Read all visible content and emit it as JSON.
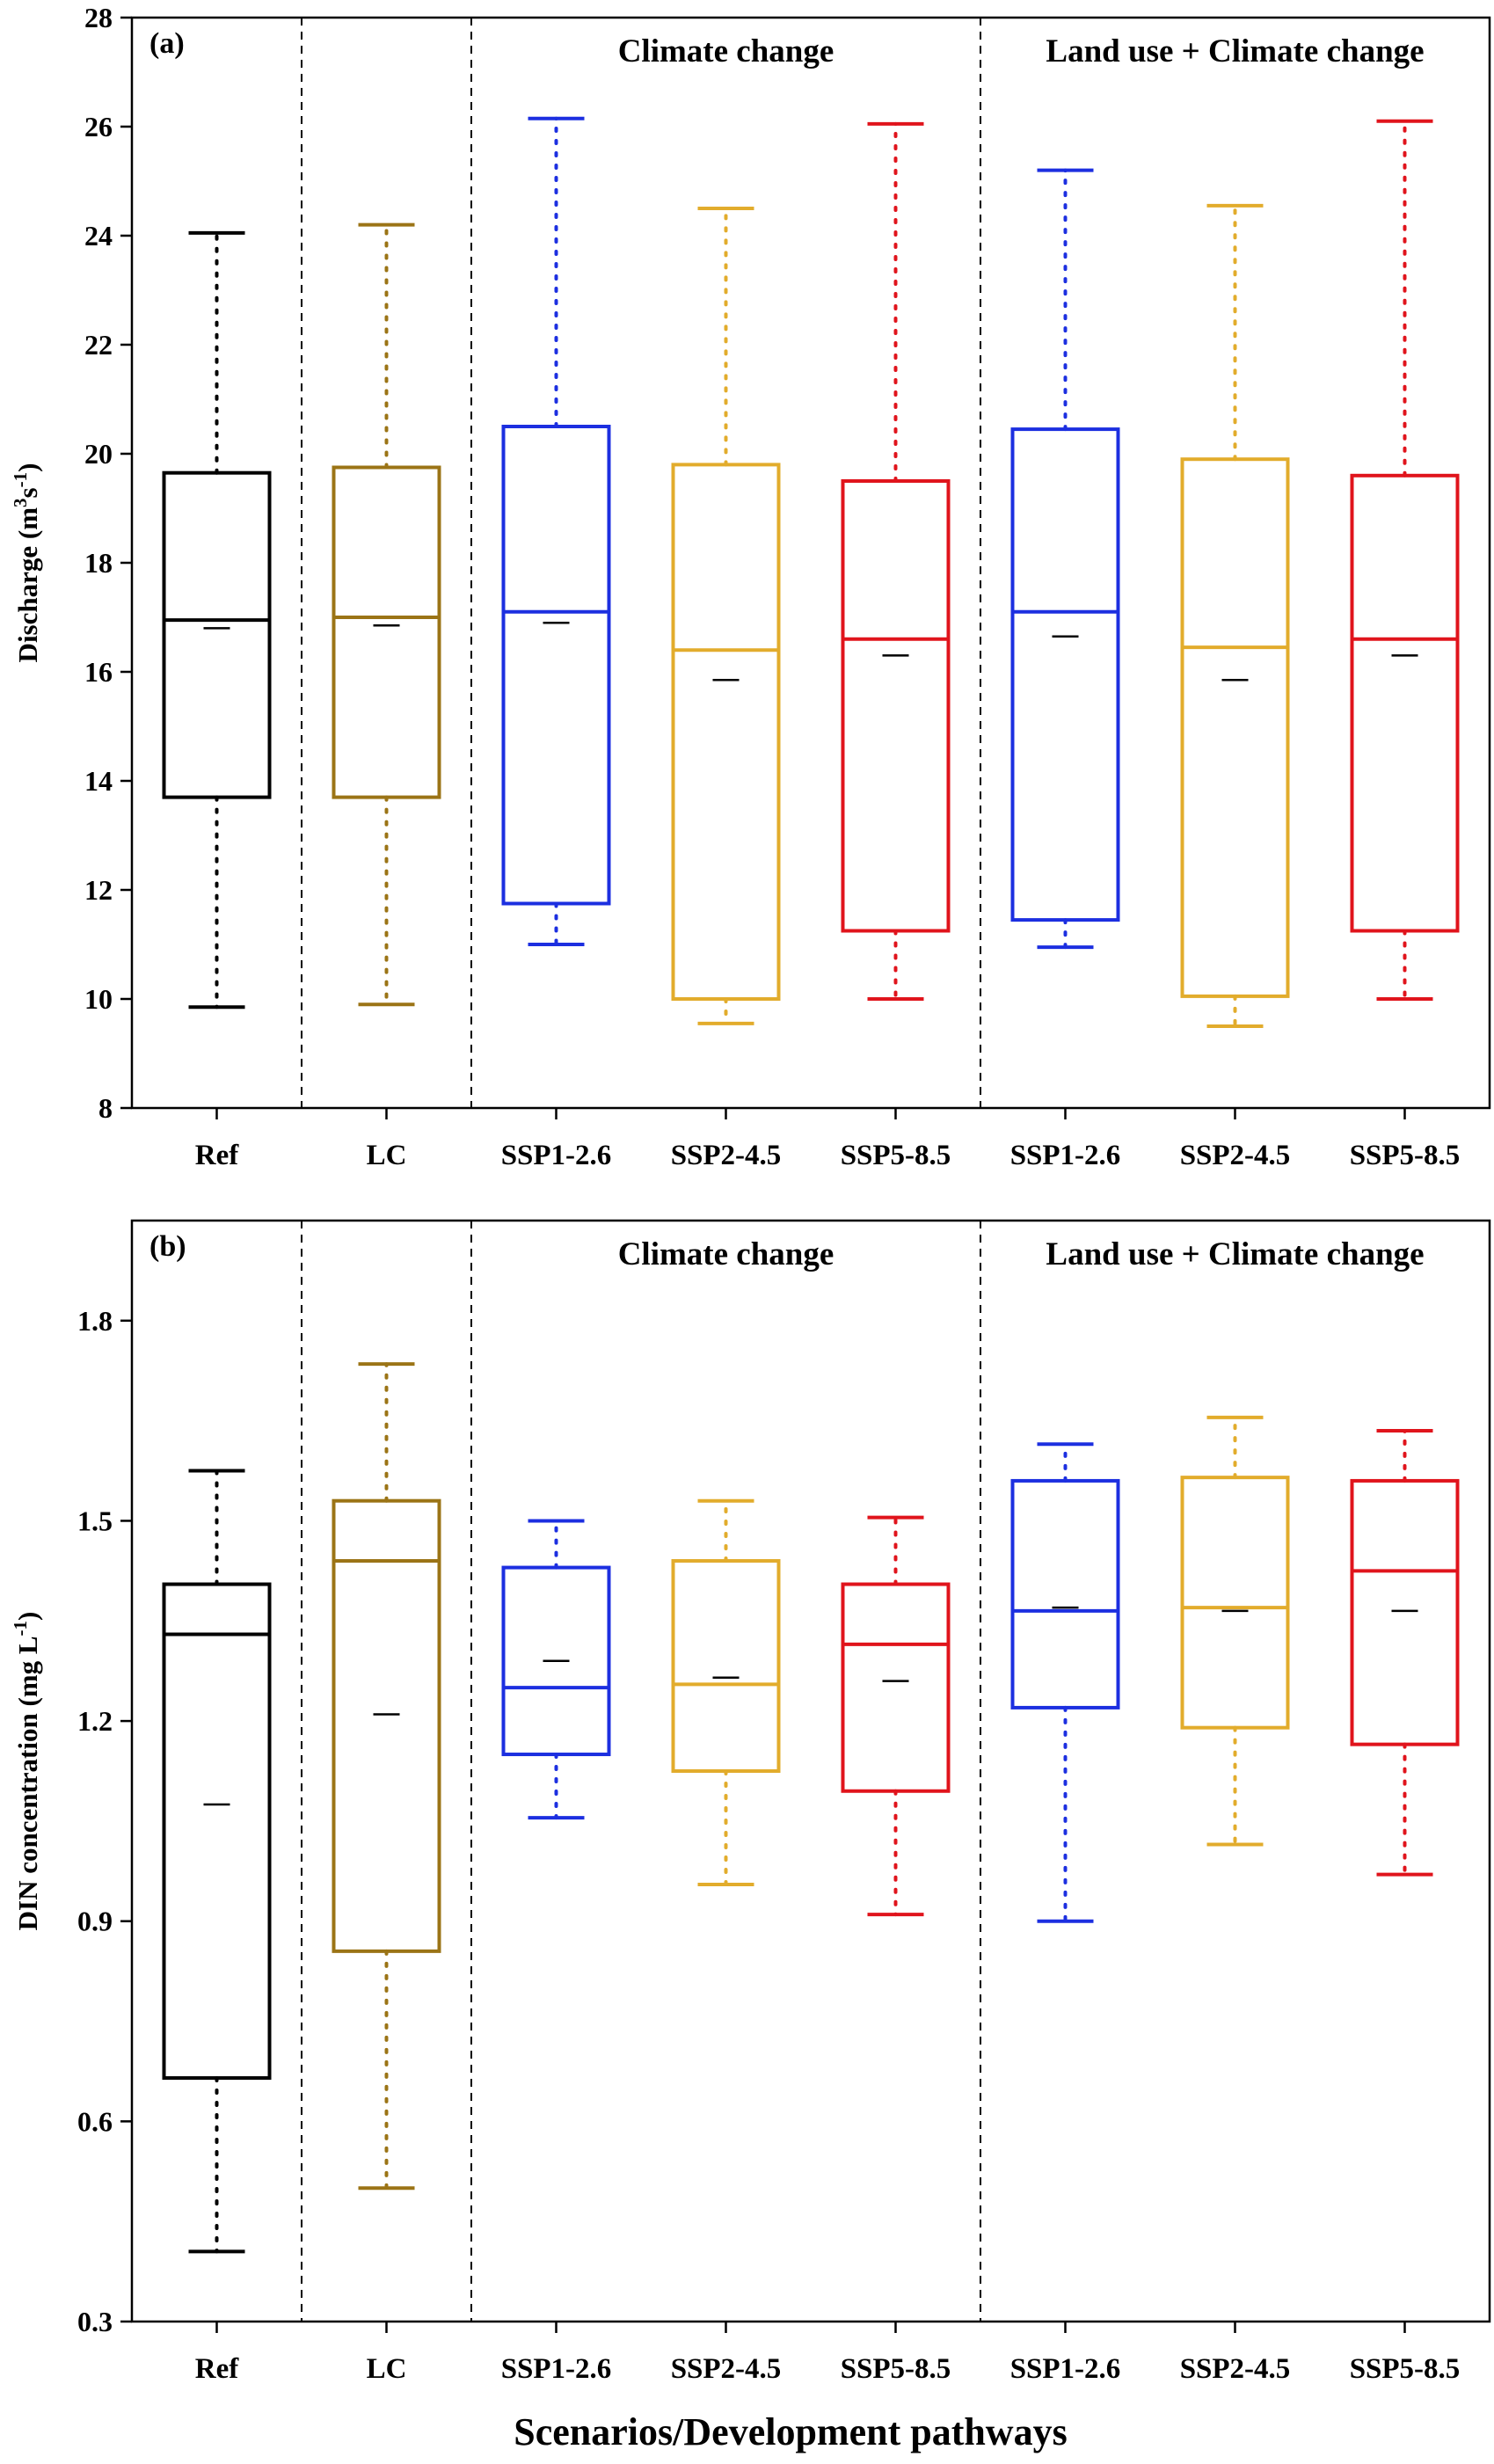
{
  "xlabel": "Scenarios/Development pathways",
  "group_colors": {
    "black": "#000000",
    "brown": "#9B7416",
    "blue": "#1C2FE0",
    "gold": "#E2AC2C",
    "red": "#E0141C"
  },
  "chart_data": [
    {
      "type": "boxplot",
      "panel_label": "(a)",
      "ylabel_main": "Discharge (m",
      "ylabel_sup1": "3",
      "ylabel_mid": "s",
      "ylabel_sup2": "-1",
      "ylabel_end": ")",
      "ylim": [
        8,
        28
      ],
      "yticks": [
        "8",
        "10",
        "12",
        "14",
        "16",
        "18",
        "20",
        "22",
        "24",
        "26",
        "28"
      ],
      "group_labels": [
        "Climate change",
        "Land use + Climate change"
      ],
      "categories": [
        "Ref",
        "LC",
        "SSP1-2.6",
        "SSP2-4.5",
        "SSP5-8.5",
        "SSP1-2.6",
        "SSP2-4.5",
        "SSP5-8.5"
      ],
      "colors": [
        "#000000",
        "#9B7416",
        "#1C2FE0",
        "#E2AC2C",
        "#E0141C",
        "#1C2FE0",
        "#E2AC2C",
        "#E0141C"
      ],
      "boxes": [
        {
          "whisker_low": 9.85,
          "q1": 13.7,
          "median": 16.95,
          "mean": 16.8,
          "q3": 19.65,
          "whisker_high": 24.05
        },
        {
          "whisker_low": 9.9,
          "q1": 13.7,
          "median": 17.0,
          "mean": 16.85,
          "q3": 19.75,
          "whisker_high": 24.2
        },
        {
          "whisker_low": 11.0,
          "q1": 11.75,
          "median": 17.1,
          "mean": 16.9,
          "q3": 20.5,
          "whisker_high": 26.15
        },
        {
          "whisker_low": 9.55,
          "q1": 10.0,
          "median": 16.4,
          "mean": 15.85,
          "q3": 19.8,
          "whisker_high": 24.5
        },
        {
          "whisker_low": 10.0,
          "q1": 11.25,
          "median": 16.6,
          "mean": 16.3,
          "q3": 19.5,
          "whisker_high": 26.05
        },
        {
          "whisker_low": 10.95,
          "q1": 11.45,
          "median": 17.1,
          "mean": 16.65,
          "q3": 20.45,
          "whisker_high": 25.2
        },
        {
          "whisker_low": 9.5,
          "q1": 10.05,
          "median": 16.45,
          "mean": 15.85,
          "q3": 19.9,
          "whisker_high": 24.55
        },
        {
          "whisker_low": 10.0,
          "q1": 11.25,
          "median": 16.6,
          "mean": 16.3,
          "q3": 19.6,
          "whisker_high": 26.1
        }
      ]
    },
    {
      "type": "boxplot",
      "panel_label": "(b)",
      "ylabel_main": "DIN concentration (mg L",
      "ylabel_sup1": "-1",
      "ylabel_mid": "",
      "ylabel_sup2": "",
      "ylabel_end": ")",
      "ylim": [
        0.3,
        1.95
      ],
      "yticks": [
        "0.3",
        "0.6",
        "0.9",
        "1.2",
        "1.5",
        "1.8"
      ],
      "group_labels": [
        "Climate change",
        "Land use + Climate change"
      ],
      "categories": [
        "Ref",
        "LC",
        "SSP1-2.6",
        "SSP2-4.5",
        "SSP5-8.5",
        "SSP1-2.6",
        "SSP2-4.5",
        "SSP5-8.5"
      ],
      "colors": [
        "#000000",
        "#9B7416",
        "#1C2FE0",
        "#E2AC2C",
        "#E0141C",
        "#1C2FE0",
        "#E2AC2C",
        "#E0141C"
      ],
      "boxes": [
        {
          "whisker_low": 0.405,
          "q1": 0.665,
          "median": 1.33,
          "mean": 1.075,
          "q3": 1.405,
          "whisker_high": 1.575
        },
        {
          "whisker_low": 0.5,
          "q1": 0.855,
          "median": 1.44,
          "mean": 1.21,
          "q3": 1.53,
          "whisker_high": 1.735
        },
        {
          "whisker_low": 1.055,
          "q1": 1.15,
          "median": 1.25,
          "mean": 1.29,
          "q3": 1.43,
          "whisker_high": 1.5
        },
        {
          "whisker_low": 0.955,
          "q1": 1.125,
          "median": 1.255,
          "mean": 1.265,
          "q3": 1.44,
          "whisker_high": 1.53
        },
        {
          "whisker_low": 0.91,
          "q1": 1.095,
          "median": 1.315,
          "mean": 1.26,
          "q3": 1.405,
          "whisker_high": 1.505
        },
        {
          "whisker_low": 0.9,
          "q1": 1.22,
          "median": 1.365,
          "mean": 1.37,
          "q3": 1.56,
          "whisker_high": 1.615
        },
        {
          "whisker_low": 1.015,
          "q1": 1.19,
          "median": 1.37,
          "mean": 1.365,
          "q3": 1.565,
          "whisker_high": 1.655
        },
        {
          "whisker_low": 0.97,
          "q1": 1.165,
          "median": 1.425,
          "mean": 1.365,
          "q3": 1.56,
          "whisker_high": 1.635
        }
      ]
    }
  ]
}
